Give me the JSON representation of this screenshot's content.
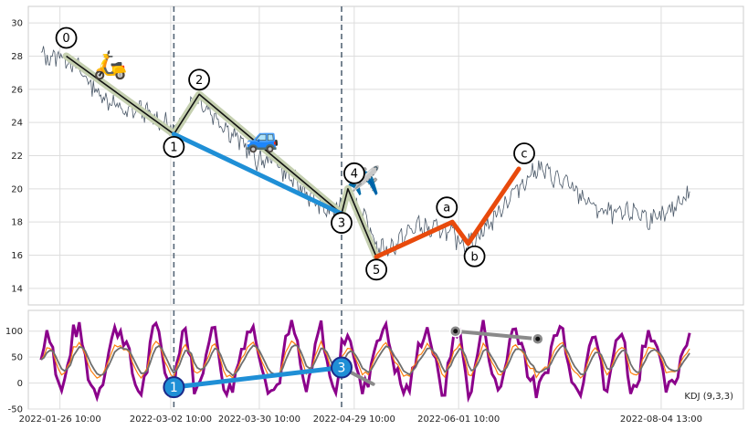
{
  "chart_data": [
    {
      "type": "line",
      "panel": "price",
      "title": "",
      "xlabel": "",
      "ylabel": "",
      "ylim": [
        13,
        31
      ],
      "yticks": [
        14,
        16,
        18,
        20,
        22,
        24,
        26,
        28,
        30
      ],
      "xlim": [
        "2022-01-16",
        "2022-08-30"
      ],
      "grid": true,
      "price_path": [
        [
          "2022-01-20",
          28.0
        ],
        [
          "2022-01-23",
          27.9
        ],
        [
          "2022-01-26",
          28.1
        ],
        [
          "2022-01-29",
          27.7
        ],
        [
          "2022-02-01",
          27.2
        ],
        [
          "2022-02-04",
          26.5
        ],
        [
          "2022-02-07",
          25.8
        ],
        [
          "2022-02-10",
          25.4
        ],
        [
          "2022-02-13",
          25.0
        ],
        [
          "2022-02-16",
          24.5
        ],
        [
          "2022-02-20",
          24.9
        ],
        [
          "2022-02-24",
          24.3
        ],
        [
          "2022-02-28",
          24.0
        ],
        [
          "2022-03-03",
          23.4
        ],
        [
          "2022-03-07",
          24.6
        ],
        [
          "2022-03-10",
          25.6
        ],
        [
          "2022-03-14",
          24.8
        ],
        [
          "2022-03-18",
          24.0
        ],
        [
          "2022-03-22",
          23.2
        ],
        [
          "2022-03-26",
          22.5
        ],
        [
          "2022-03-30",
          21.6
        ],
        [
          "2022-04-03",
          21.9
        ],
        [
          "2022-04-07",
          21.0
        ],
        [
          "2022-04-12",
          20.1
        ],
        [
          "2022-04-17",
          19.2
        ],
        [
          "2022-04-21",
          18.6
        ],
        [
          "2022-04-24",
          18.8
        ],
        [
          "2022-04-27",
          20.0
        ],
        [
          "2022-04-30",
          19.0
        ],
        [
          "2022-05-03",
          17.8
        ],
        [
          "2022-05-07",
          16.3
        ],
        [
          "2022-05-11",
          16.5
        ],
        [
          "2022-05-15",
          17.2
        ],
        [
          "2022-05-19",
          17.8
        ],
        [
          "2022-05-23",
          17.5
        ],
        [
          "2022-05-27",
          17.6
        ],
        [
          "2022-05-31",
          17.0
        ],
        [
          "2022-06-04",
          16.7
        ],
        [
          "2022-06-07",
          17.1
        ],
        [
          "2022-06-12",
          18.2
        ],
        [
          "2022-06-17",
          19.5
        ],
        [
          "2022-06-22",
          20.5
        ],
        [
          "2022-06-26",
          21.3
        ],
        [
          "2022-06-30",
          20.8
        ],
        [
          "2022-07-04",
          20.4
        ],
        [
          "2022-07-07",
          20.0
        ],
        [
          "2022-07-11",
          19.4
        ],
        [
          "2022-07-15",
          18.7
        ],
        [
          "2022-07-19",
          18.5
        ],
        [
          "2022-07-23",
          18.4
        ],
        [
          "2022-07-27",
          18.7
        ],
        [
          "2022-07-31",
          18.2
        ],
        [
          "2022-08-03",
          18.1
        ],
        [
          "2022-08-07",
          18.6
        ],
        [
          "2022-08-10",
          19.4
        ],
        [
          "2022-08-13",
          19.6
        ]
      ],
      "wave_points": [
        {
          "label": "0",
          "x": "2022-01-28",
          "y": 28.0
        },
        {
          "label": "1",
          "x": "2022-03-03",
          "y": 23.3
        },
        {
          "label": "2",
          "x": "2022-03-11",
          "y": 25.7
        },
        {
          "label": "3",
          "x": "2022-04-25",
          "y": 18.5
        },
        {
          "label": "4",
          "x": "2022-04-27",
          "y": 20.0
        },
        {
          "label": "5",
          "x": "2022-05-06",
          "y": 15.9
        },
        {
          "label": "a",
          "x": "2022-05-30",
          "y": 18.0
        },
        {
          "label": "b",
          "x": "2022-06-04",
          "y": 16.7
        },
        {
          "label": "c",
          "x": "2022-06-20",
          "y": 21.2
        }
      ],
      "corrective_path": [
        {
          "x": "2022-05-06",
          "y": 15.9
        },
        {
          "x": "2022-05-30",
          "y": 18.0
        },
        {
          "x": "2022-06-04",
          "y": 16.7
        },
        {
          "x": "2022-06-20",
          "y": 21.2
        }
      ],
      "trend_line": [
        {
          "x": "2022-03-03",
          "y": 23.3
        },
        {
          "x": "2022-04-25",
          "y": 18.5
        }
      ],
      "vertical_markers": [
        "2022-03-03",
        "2022-04-25"
      ],
      "emoji_annotations": [
        {
          "glyph": "🛵",
          "x": "2022-02-11",
          "y": 27.4
        },
        {
          "glyph": "🚙",
          "x": "2022-03-31",
          "y": 23.0
        },
        {
          "glyph": "✈️",
          "x": "2022-05-02",
          "y": 20.4
        }
      ]
    },
    {
      "type": "line",
      "panel": "kdj",
      "title": "",
      "label": "KDJ (9,3,3)",
      "xlabel": "",
      "ylabel": "",
      "ylim": [
        -50,
        140
      ],
      "yticks": [
        -50,
        0,
        50,
        100
      ],
      "xlim": [
        "2022-01-16",
        "2022-08-30"
      ],
      "xtick_labels": [
        {
          "x": "2022-01-26",
          "label": "2022-01-26 10:00"
        },
        {
          "x": "2022-03-02",
          "label": "2022-03-02 10:00"
        },
        {
          "x": "2022-03-30",
          "label": "2022-03-30 10:00"
        },
        {
          "x": "2022-04-29",
          "label": "2022-04-29 10:00"
        },
        {
          "x": "2022-06-01",
          "label": "2022-06-01 10:00"
        },
        {
          "x": "2022-08-04",
          "label": "2022-08-04 13:00"
        }
      ],
      "oscillator": {
        "start": "2022-01-20",
        "end": "2022-08-13",
        "samples": 220,
        "center": 45,
        "amplitude_j": 60,
        "amplitude_kd": 35
      },
      "divergence_blue": [
        {
          "label": "1",
          "x": "2022-03-03",
          "y": -8
        },
        {
          "label": "3",
          "x": "2022-04-25",
          "y": 30
        }
      ],
      "divergence_blue_tail": [
        {
          "x": "2022-04-25",
          "y": 30
        },
        {
          "x": "2022-05-05",
          "y": -2
        }
      ],
      "divergence_gray": [
        {
          "x": "2022-05-31",
          "y": 100
        },
        {
          "x": "2022-06-26",
          "y": 85
        }
      ],
      "colors": {
        "j_line": "#8b008b",
        "k_line": "#ff7f0e",
        "d_line": "#6e6e6e",
        "blue": "#1f8fd6",
        "gray": "#8a8a8a",
        "orange_red": "#e84a0c",
        "olive": "#c5d0b0",
        "marker": "#556677"
      }
    }
  ]
}
